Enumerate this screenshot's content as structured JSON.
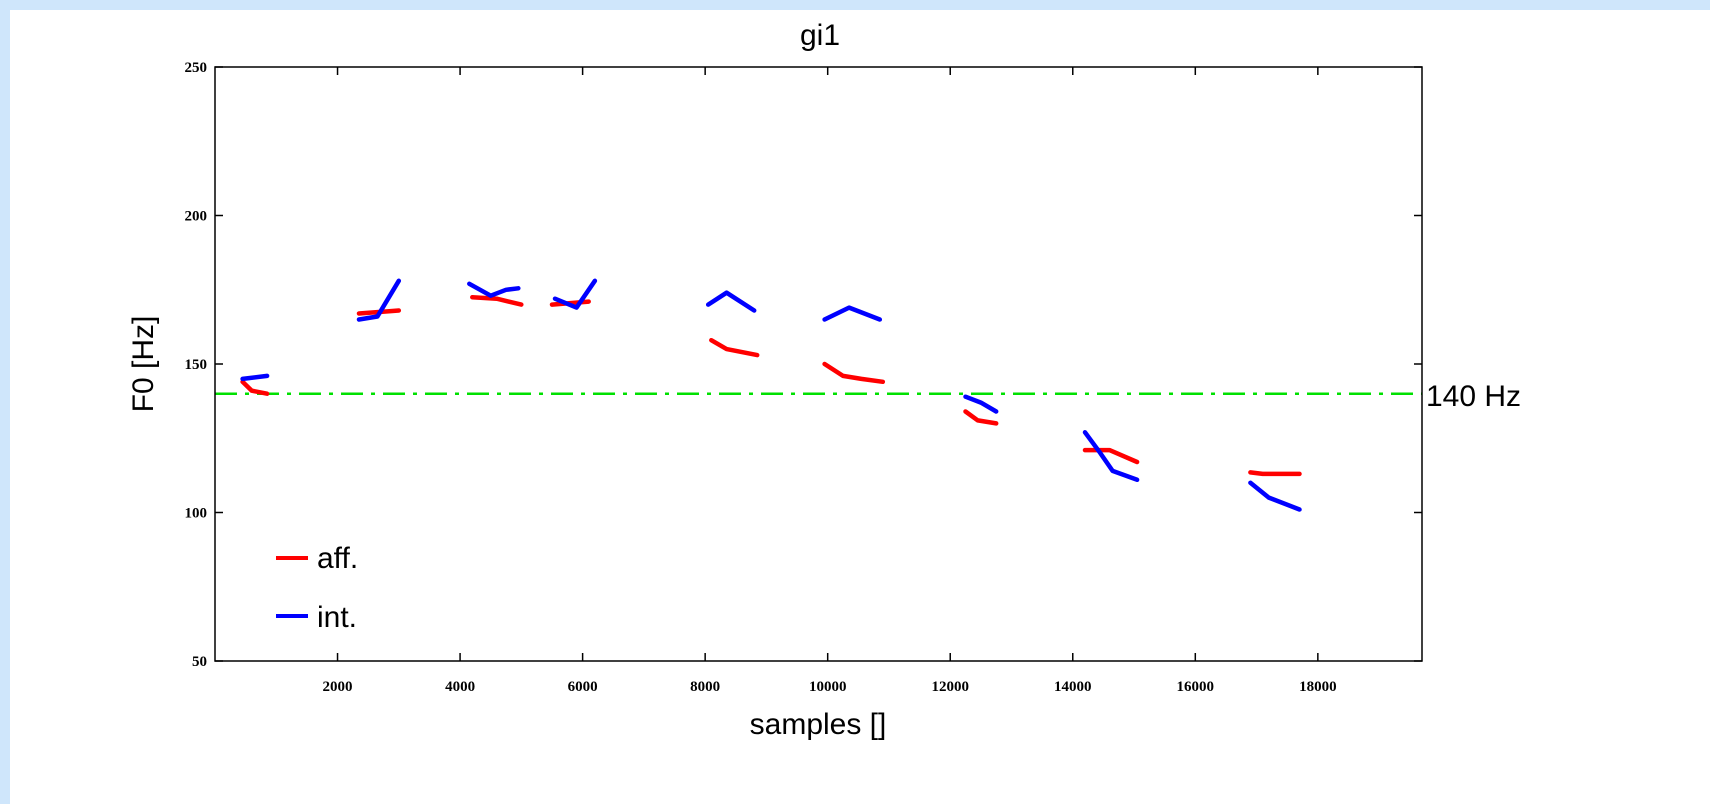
{
  "colors": {
    "page_background": "#cfe6fb",
    "plot_background": "#ffffff",
    "aff": "#ff0000",
    "int": "#0000ff",
    "reference": "#00e000"
  },
  "chart_data": {
    "type": "line",
    "title": "gi1",
    "xlabel": "samples []",
    "ylabel": "F0 [Hz]",
    "xlim": [
      0,
      19700
    ],
    "ylim": [
      50,
      250
    ],
    "x_ticks": [
      2000,
      4000,
      6000,
      8000,
      10000,
      12000,
      14000,
      16000,
      18000
    ],
    "y_ticks": [
      50,
      100,
      150,
      200,
      250
    ],
    "grid": false,
    "legend_position": "bottom-left",
    "reference_line": {
      "y": 140,
      "label": "140 Hz",
      "style": "dash-dot",
      "color": "#00e000"
    },
    "series": [
      {
        "name": "aff.",
        "color": "#ff0000",
        "segments": [
          [
            [
              450,
              144
            ],
            [
              600,
              141
            ],
            [
              850,
              140
            ]
          ],
          [
            [
              2350,
              167
            ],
            [
              3000,
              168
            ]
          ],
          [
            [
              4200,
              172.5
            ],
            [
              4600,
              172
            ],
            [
              5000,
              170
            ]
          ],
          [
            [
              5500,
              170
            ],
            [
              6100,
              171
            ]
          ],
          [
            [
              8100,
              158
            ],
            [
              8350,
              155
            ],
            [
              8600,
              154
            ],
            [
              8850,
              153
            ]
          ],
          [
            [
              9950,
              150
            ],
            [
              10250,
              146
            ],
            [
              10550,
              145
            ],
            [
              10900,
              144
            ]
          ],
          [
            [
              12250,
              134
            ],
            [
              12450,
              131
            ],
            [
              12750,
              130
            ]
          ],
          [
            [
              14200,
              121
            ],
            [
              14600,
              121
            ],
            [
              15050,
              117
            ]
          ],
          [
            [
              16900,
              113.5
            ],
            [
              17100,
              113
            ],
            [
              17700,
              113
            ]
          ]
        ]
      },
      {
        "name": "int.",
        "color": "#0000ff",
        "segments": [
          [
            [
              450,
              145
            ],
            [
              850,
              146
            ]
          ],
          [
            [
              2350,
              165
            ],
            [
              2650,
              166
            ],
            [
              3000,
              178
            ]
          ],
          [
            [
              4150,
              177
            ],
            [
              4500,
              173
            ],
            [
              4750,
              175
            ],
            [
              4950,
              175.5
            ]
          ],
          [
            [
              5550,
              172
            ],
            [
              5900,
              169
            ],
            [
              6200,
              178
            ]
          ],
          [
            [
              8050,
              170
            ],
            [
              8350,
              174
            ],
            [
              8800,
              168
            ]
          ],
          [
            [
              9950,
              165
            ],
            [
              10350,
              169
            ],
            [
              10850,
              165
            ]
          ],
          [
            [
              12250,
              139
            ],
            [
              12500,
              137
            ],
            [
              12750,
              134
            ]
          ],
          [
            [
              14200,
              127
            ],
            [
              14450,
              120
            ],
            [
              14650,
              114
            ],
            [
              15050,
              111
            ]
          ],
          [
            [
              16900,
              110
            ],
            [
              17200,
              105
            ],
            [
              17700,
              101
            ]
          ]
        ]
      }
    ]
  }
}
